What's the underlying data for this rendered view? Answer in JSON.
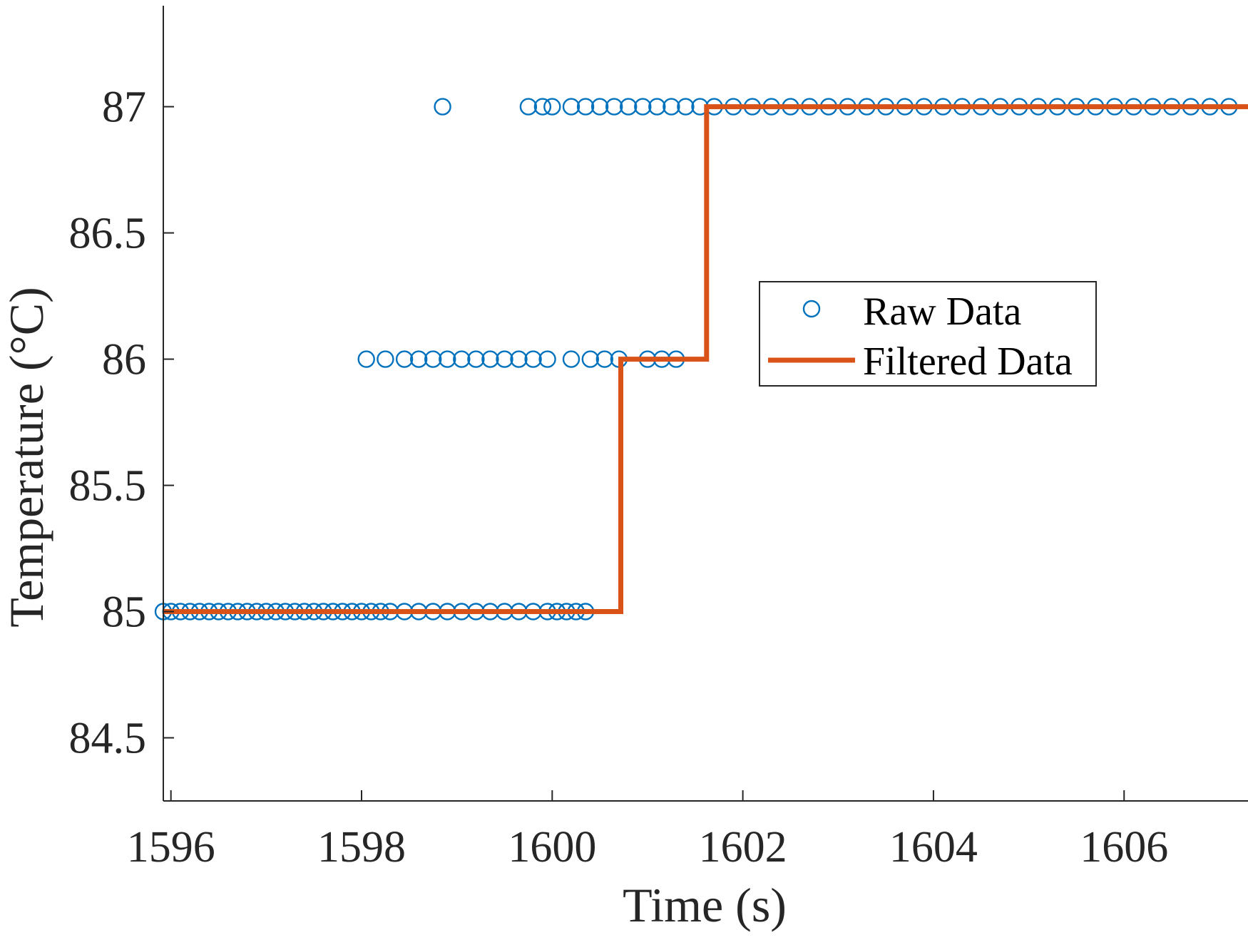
{
  "chart_data": {
    "type": "scatter",
    "title": "",
    "xlabel": "Time (s)",
    "ylabel": "Temperature (°C)",
    "xlim": [
      1595.92,
      1607.3
    ],
    "ylim": [
      84.25,
      87.4
    ],
    "xticks": [
      1596,
      1598,
      1600,
      1602,
      1604,
      1606
    ],
    "yticks": [
      84.5,
      85,
      85.5,
      86,
      86.5,
      87
    ],
    "xtick_labels": [
      "1596",
      "1598",
      "1600",
      "1602",
      "1604",
      "1606"
    ],
    "ytick_labels": [
      "84.5",
      "85",
      "85.5",
      "86",
      "86.5",
      "87"
    ],
    "grid": false,
    "legend_position": "center-right",
    "series": [
      {
        "name": "Raw Data",
        "type": "scatter",
        "marker": "circle-open",
        "color": "#0072BD",
        "points": [
          {
            "x": 1595.92,
            "y": 85
          },
          {
            "x": 1596.0,
            "y": 85
          },
          {
            "x": 1596.1,
            "y": 85
          },
          {
            "x": 1596.2,
            "y": 85
          },
          {
            "x": 1596.3,
            "y": 85
          },
          {
            "x": 1596.4,
            "y": 85
          },
          {
            "x": 1596.5,
            "y": 85
          },
          {
            "x": 1596.6,
            "y": 85
          },
          {
            "x": 1596.7,
            "y": 85
          },
          {
            "x": 1596.8,
            "y": 85
          },
          {
            "x": 1596.9,
            "y": 85
          },
          {
            "x": 1597.0,
            "y": 85
          },
          {
            "x": 1597.1,
            "y": 85
          },
          {
            "x": 1597.2,
            "y": 85
          },
          {
            "x": 1597.3,
            "y": 85
          },
          {
            "x": 1597.4,
            "y": 85
          },
          {
            "x": 1597.5,
            "y": 85
          },
          {
            "x": 1597.6,
            "y": 85
          },
          {
            "x": 1597.7,
            "y": 85
          },
          {
            "x": 1597.8,
            "y": 85
          },
          {
            "x": 1597.9,
            "y": 85
          },
          {
            "x": 1598.0,
            "y": 85
          },
          {
            "x": 1598.1,
            "y": 85
          },
          {
            "x": 1598.2,
            "y": 85
          },
          {
            "x": 1598.3,
            "y": 85
          },
          {
            "x": 1598.45,
            "y": 85
          },
          {
            "x": 1598.6,
            "y": 85
          },
          {
            "x": 1598.75,
            "y": 85
          },
          {
            "x": 1598.9,
            "y": 85
          },
          {
            "x": 1599.05,
            "y": 85
          },
          {
            "x": 1599.2,
            "y": 85
          },
          {
            "x": 1599.35,
            "y": 85
          },
          {
            "x": 1599.5,
            "y": 85
          },
          {
            "x": 1599.65,
            "y": 85
          },
          {
            "x": 1599.8,
            "y": 85
          },
          {
            "x": 1599.95,
            "y": 85
          },
          {
            "x": 1600.05,
            "y": 85
          },
          {
            "x": 1600.15,
            "y": 85
          },
          {
            "x": 1600.25,
            "y": 85
          },
          {
            "x": 1600.35,
            "y": 85
          },
          {
            "x": 1598.05,
            "y": 86
          },
          {
            "x": 1598.25,
            "y": 86
          },
          {
            "x": 1598.45,
            "y": 86
          },
          {
            "x": 1598.6,
            "y": 86
          },
          {
            "x": 1598.75,
            "y": 86
          },
          {
            "x": 1598.9,
            "y": 86
          },
          {
            "x": 1599.05,
            "y": 86
          },
          {
            "x": 1599.2,
            "y": 86
          },
          {
            "x": 1599.35,
            "y": 86
          },
          {
            "x": 1599.5,
            "y": 86
          },
          {
            "x": 1599.65,
            "y": 86
          },
          {
            "x": 1599.8,
            "y": 86
          },
          {
            "x": 1599.95,
            "y": 86
          },
          {
            "x": 1600.2,
            "y": 86
          },
          {
            "x": 1600.4,
            "y": 86
          },
          {
            "x": 1600.55,
            "y": 86
          },
          {
            "x": 1600.7,
            "y": 86
          },
          {
            "x": 1601.0,
            "y": 86
          },
          {
            "x": 1601.15,
            "y": 86
          },
          {
            "x": 1601.3,
            "y": 86
          },
          {
            "x": 1598.85,
            "y": 87
          },
          {
            "x": 1599.75,
            "y": 87
          },
          {
            "x": 1599.9,
            "y": 87
          },
          {
            "x": 1600.0,
            "y": 87
          },
          {
            "x": 1600.2,
            "y": 87
          },
          {
            "x": 1600.35,
            "y": 87
          },
          {
            "x": 1600.5,
            "y": 87
          },
          {
            "x": 1600.65,
            "y": 87
          },
          {
            "x": 1600.8,
            "y": 87
          },
          {
            "x": 1600.95,
            "y": 87
          },
          {
            "x": 1601.1,
            "y": 87
          },
          {
            "x": 1601.25,
            "y": 87
          },
          {
            "x": 1601.4,
            "y": 87
          },
          {
            "x": 1601.55,
            "y": 87
          },
          {
            "x": 1601.7,
            "y": 87
          },
          {
            "x": 1601.9,
            "y": 87
          },
          {
            "x": 1602.1,
            "y": 87
          },
          {
            "x": 1602.3,
            "y": 87
          },
          {
            "x": 1602.5,
            "y": 87
          },
          {
            "x": 1602.7,
            "y": 87
          },
          {
            "x": 1602.9,
            "y": 87
          },
          {
            "x": 1603.1,
            "y": 87
          },
          {
            "x": 1603.3,
            "y": 87
          },
          {
            "x": 1603.5,
            "y": 87
          },
          {
            "x": 1603.7,
            "y": 87
          },
          {
            "x": 1603.9,
            "y": 87
          },
          {
            "x": 1604.1,
            "y": 87
          },
          {
            "x": 1604.3,
            "y": 87
          },
          {
            "x": 1604.5,
            "y": 87
          },
          {
            "x": 1604.7,
            "y": 87
          },
          {
            "x": 1604.9,
            "y": 87
          },
          {
            "x": 1605.1,
            "y": 87
          },
          {
            "x": 1605.3,
            "y": 87
          },
          {
            "x": 1605.5,
            "y": 87
          },
          {
            "x": 1605.7,
            "y": 87
          },
          {
            "x": 1605.9,
            "y": 87
          },
          {
            "x": 1606.1,
            "y": 87
          },
          {
            "x": 1606.3,
            "y": 87
          },
          {
            "x": 1606.5,
            "y": 87
          },
          {
            "x": 1606.7,
            "y": 87
          },
          {
            "x": 1606.9,
            "y": 87
          },
          {
            "x": 1607.1,
            "y": 87
          }
        ]
      },
      {
        "name": "Filtered Data",
        "type": "step",
        "color": "#D95319",
        "points": [
          {
            "x": 1595.92,
            "y": 85
          },
          {
            "x": 1600.72,
            "y": 85
          },
          {
            "x": 1600.72,
            "y": 86
          },
          {
            "x": 1601.62,
            "y": 86
          },
          {
            "x": 1601.62,
            "y": 87
          },
          {
            "x": 1607.3,
            "y": 87
          }
        ]
      }
    ]
  }
}
